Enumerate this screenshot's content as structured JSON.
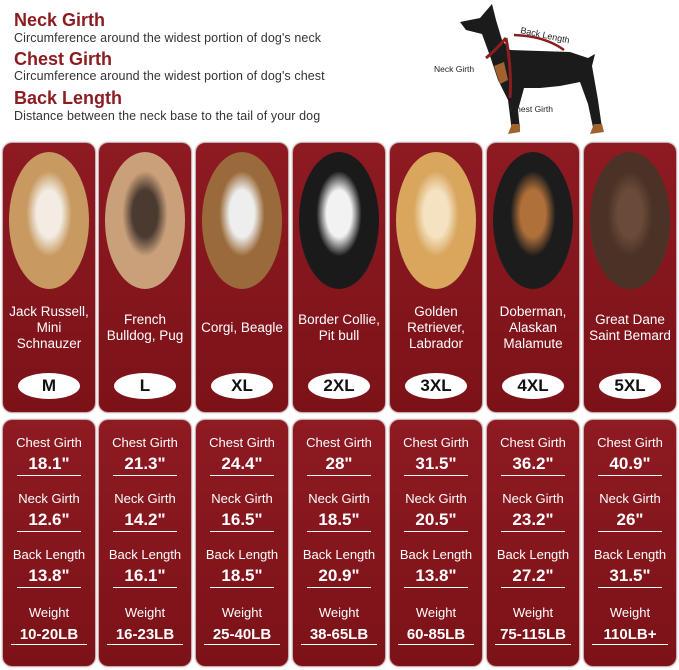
{
  "header": [
    {
      "title": "Neck Girth",
      "desc": "Circumference around the widest portion of dog's neck"
    },
    {
      "title": "Chest Girth",
      "desc": "Circumference around the widest portion of dog's chest"
    },
    {
      "title": "Back Length",
      "desc": "Distance between the neck base to the tail of your dog"
    }
  ],
  "diagram": {
    "back_length": "Back Length",
    "neck_girth": "Neck Girth",
    "chest_girth": "Chest Girth"
  },
  "labels": {
    "chest": "Chest Girth",
    "neck": "Neck Girth",
    "back": "Back Length",
    "weight": "Weight"
  },
  "colors": {
    "card": "#8e1a22",
    "title": "#8b1c1f"
  },
  "sizes": [
    {
      "breed": "Jack Russell, Mini Schnauzer",
      "size": "M",
      "chest": "18.1\"",
      "neck": "12.6\"",
      "back": "13.8\"",
      "weight": "10-20LB",
      "photo": [
        "#c89a62",
        "#f2ece2"
      ]
    },
    {
      "breed": "French Bulldog, Pug",
      "size": "L",
      "chest": "21.3\"",
      "neck": "14.2\"",
      "back": "16.1\"",
      "weight": "16-23LB",
      "photo": [
        "#c9a07a",
        "#4a3a30"
      ]
    },
    {
      "breed": "Corgi, Beagle",
      "size": "XL",
      "chest": "24.4\"",
      "neck": "16.5\"",
      "back": "18.5\"",
      "weight": "25-40LB",
      "photo": [
        "#9a6a3a",
        "#eee"
      ]
    },
    {
      "breed": "Border Collie, Pit bull",
      "size": "2XL",
      "chest": "28\"",
      "neck": "18.5\"",
      "back": "20.9\"",
      "weight": "38-65LB",
      "photo": [
        "#1a1a1a",
        "#f2f2f2"
      ]
    },
    {
      "breed": "Golden Retriever, Labrador",
      "size": "3XL",
      "chest": "31.5\"",
      "neck": "20.5\"",
      "back": "13.8\"",
      "weight": "60-85LB",
      "photo": [
        "#d9a65e",
        "#f4e2c0"
      ]
    },
    {
      "breed": "Doberman, Alaskan Malamute",
      "size": "4XL",
      "chest": "36.2\"",
      "neck": "23.2\"",
      "back": "27.2\"",
      "weight": "75-115LB",
      "photo": [
        "#1c1c1c",
        "#b0703a"
      ]
    },
    {
      "breed": "Great Dane Saint Bemard",
      "size": "5XL",
      "chest": "40.9\"",
      "neck": "26\"",
      "back": "31.5\"",
      "weight": "110LB+",
      "photo": [
        "#4a3226",
        "#6a4a38"
      ]
    }
  ]
}
